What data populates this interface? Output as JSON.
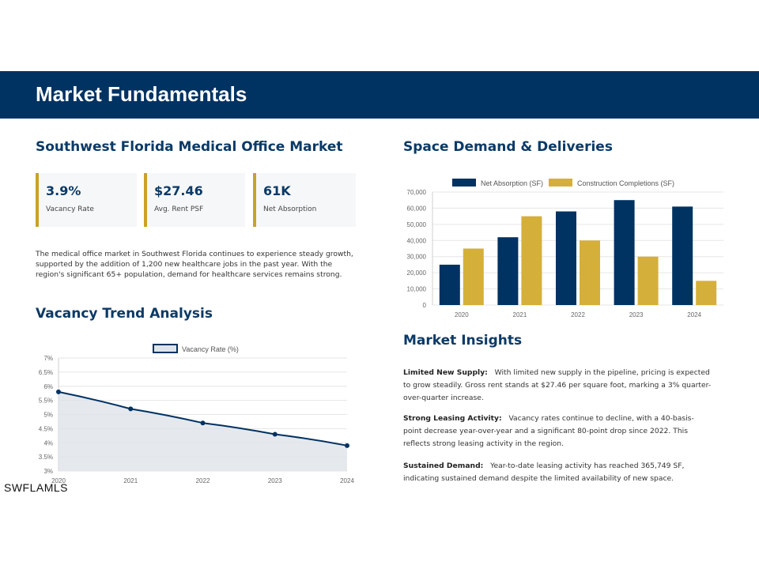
{
  "header": {
    "title": "Market Fundamentals"
  },
  "market": {
    "title": "Southwest Florida Medical Office Market",
    "stats": [
      {
        "value": "3.9%",
        "label": "Vacancy Rate"
      },
      {
        "value": "$27.46",
        "label": "Avg. Rent PSF"
      },
      {
        "value": "61K",
        "label": "Net Absorption"
      }
    ],
    "description": " The medical office market in Southwest Florida continues to experience steady growth, supported by the addition of 1,200 new healthcare jobs in the past year. With the region's significant 65+ population, demand for healthcare services remains strong."
  },
  "vacancy": {
    "title": "Vacancy Trend Analysis"
  },
  "demand": {
    "title": "Space Demand & Deliveries"
  },
  "insights": {
    "title": "Market Insights",
    "items": [
      {
        "heading": "Limited New Supply:",
        "text": "With limited new supply in the pipeline, pricing is expected to grow steadily. Gross rent stands at $27.46 per square foot, marking a 3% quarter-over-quarter increase."
      },
      {
        "heading": "Strong Leasing Activity:",
        "text": "Vacancy rates continue to decline, with a 40-basis-point decrease year-over-year and a significant 80-point drop since 2022. This reflects strong leasing activity in the region."
      },
      {
        "heading": "Sustained Demand:",
        "text": "Year-to-date leasing activity has reached 365,749 SF, indicating sustained demand despite the limited availability of new space."
      }
    ]
  },
  "watermark": "SWFLAMLS",
  "colors": {
    "navy": "#003262",
    "gold": "#d4b03a",
    "fill": "#dfe4ea"
  },
  "chart_data": [
    {
      "type": "line",
      "title": "",
      "x": [
        "2020",
        "2021",
        "2022",
        "2023",
        "2024"
      ],
      "series": [
        {
          "name": "Vacancy Rate (%)",
          "values": [
            5.8,
            5.2,
            4.7,
            4.3,
            3.9
          ]
        }
      ],
      "ylim": [
        3,
        7
      ],
      "yticks": [
        "3%",
        "3.5%",
        "4%",
        "4.5%",
        "5%",
        "5.5%",
        "6%",
        "6.5%",
        "7%"
      ],
      "xlabel": "",
      "ylabel": "",
      "legend": "top-center",
      "grid": true
    },
    {
      "type": "bar",
      "title": "",
      "categories": [
        "2020",
        "2021",
        "2022",
        "2023",
        "2024"
      ],
      "series": [
        {
          "name": "Net Absorption (SF)",
          "values": [
            25000,
            42000,
            58000,
            65000,
            61000
          ]
        },
        {
          "name": "Construction Completions (SF)",
          "values": [
            35000,
            55000,
            40000,
            30000,
            15000
          ]
        }
      ],
      "ylim": [
        0,
        70000
      ],
      "yticks": [
        "0",
        "10,000",
        "20,000",
        "30,000",
        "40,000",
        "50,000",
        "60,000",
        "70,000"
      ],
      "xlabel": "",
      "ylabel": "",
      "legend": "top-center",
      "grid": true
    }
  ]
}
